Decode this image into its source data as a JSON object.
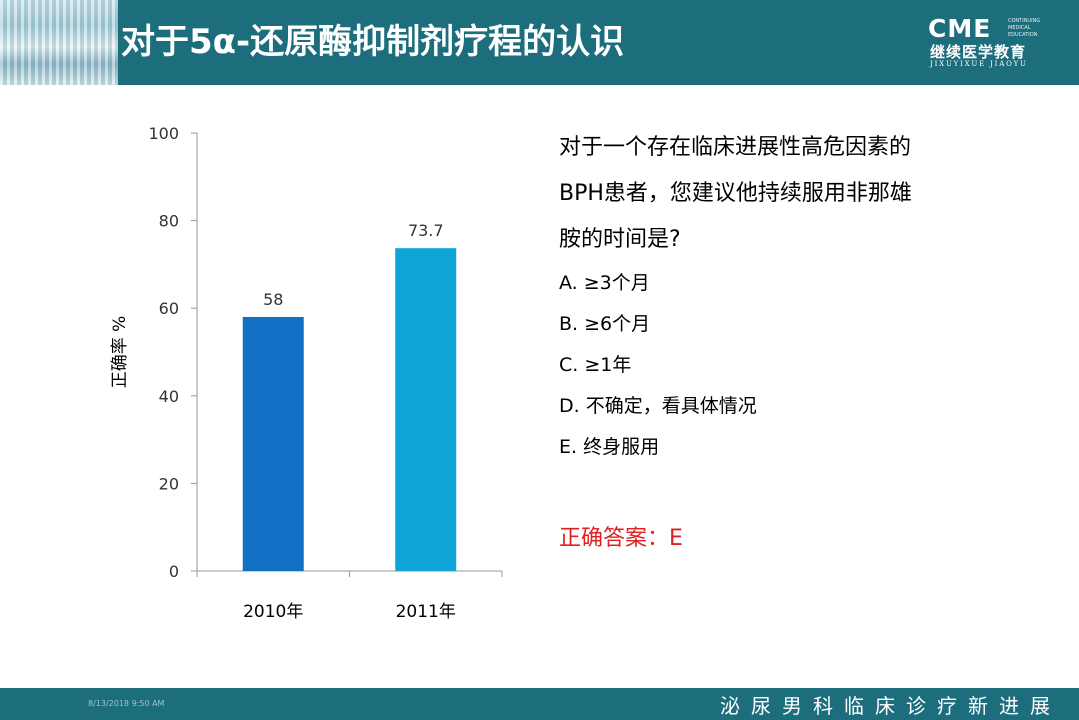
{
  "slide": {
    "title": "对于5α-还原酶抑制剂疗程的认识",
    "footer_date": "8/13/2018 9:50 AM",
    "footer_text": "泌尿男科临床诊疗新进展"
  },
  "logo": {
    "main": "CME",
    "small": [
      "CONTINUING",
      "MEDICAL",
      "EDUCATION"
    ],
    "cn": "继续医学教育",
    "pinyin": "JIXUYIXUE JIAOYU"
  },
  "question": {
    "lines": [
      "对于一个存在临床进展性高危因素的",
      "BPH患者，您建议他持续服用非那雄",
      "胺的时间是?"
    ],
    "options": [
      "A. ≥3个月",
      "B. ≥6个月",
      "C. ≥1年",
      "D. 不确定，看具体情况",
      "E. 终身服用"
    ],
    "answer": "正确答案：E"
  },
  "chart_data": {
    "type": "bar",
    "categories": [
      "2010年",
      "2011年"
    ],
    "values": [
      58,
      73.7
    ],
    "value_labels": [
      "58",
      "73.7"
    ],
    "colors": [
      "#1270c4",
      "#0fa3d6"
    ],
    "ylabel": "正确率 %",
    "ylim": [
      0,
      100
    ],
    "yticks": [
      0,
      20,
      40,
      60,
      80,
      100
    ],
    "grid": false
  }
}
